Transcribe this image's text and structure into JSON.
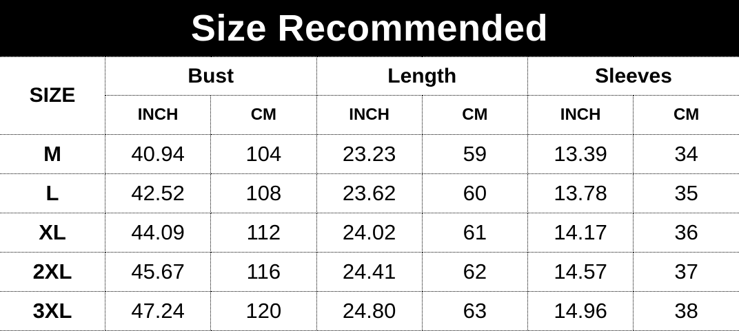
{
  "title": "Size Recommended",
  "table": {
    "size_header": "SIZE",
    "groups": [
      "Bust",
      "Length",
      "Sleeves"
    ],
    "units": [
      "INCH",
      "CM",
      "INCH",
      "CM",
      "INCH",
      "CM"
    ],
    "rows": [
      {
        "size": "M",
        "values": [
          "40.94",
          "104",
          "23.23",
          "59",
          "13.39",
          "34"
        ]
      },
      {
        "size": "L",
        "values": [
          "42.52",
          "108",
          "23.62",
          "60",
          "13.78",
          "35"
        ]
      },
      {
        "size": "XL",
        "values": [
          "44.09",
          "112",
          "24.02",
          "61",
          "14.17",
          "36"
        ]
      },
      {
        "size": "2XL",
        "values": [
          "45.67",
          "116",
          "24.41",
          "62",
          "14.57",
          "37"
        ]
      },
      {
        "size": "3XL",
        "values": [
          "47.24",
          "120",
          "24.80",
          "63",
          "14.96",
          "38"
        ]
      }
    ]
  },
  "colors": {
    "title_bg": "#000000",
    "title_text": "#ffffff",
    "border": "#000000"
  }
}
